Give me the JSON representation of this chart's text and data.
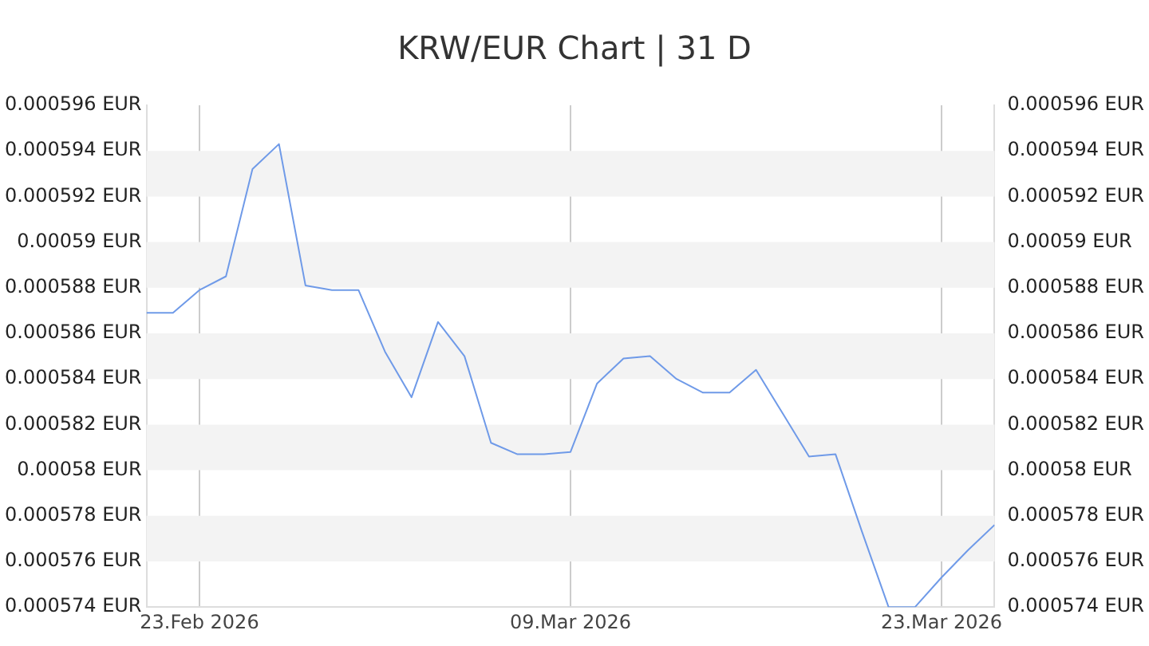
{
  "chart_data": {
    "type": "line",
    "title": "KRW/EUR Chart | 31 D",
    "x": [
      "2026-02-21",
      "2026-02-22",
      "2026-02-23",
      "2026-02-24",
      "2026-02-25",
      "2026-02-26",
      "2026-02-27",
      "2026-02-28",
      "2026-03-01",
      "2026-03-02",
      "2026-03-03",
      "2026-03-04",
      "2026-03-05",
      "2026-03-06",
      "2026-03-07",
      "2026-03-08",
      "2026-03-09",
      "2026-03-10",
      "2026-03-11",
      "2026-03-12",
      "2026-03-13",
      "2026-03-14",
      "2026-03-15",
      "2026-03-16",
      "2026-03-17",
      "2026-03-18",
      "2026-03-19",
      "2026-03-20",
      "2026-03-21",
      "2026-03-22",
      "2026-03-23",
      "2026-03-24",
      "2026-03-25"
    ],
    "series": [
      {
        "color": "#6f9ae8",
        "values": [
          0.0005869,
          0.0005869,
          0.0005879,
          0.0005885,
          0.0005932,
          0.0005943,
          0.0005881,
          0.0005879,
          0.0005879,
          0.0005852,
          0.0005832,
          0.0005865,
          0.000585,
          0.0005812,
          0.0005807,
          0.0005807,
          0.0005808,
          0.0005838,
          0.0005849,
          0.000585,
          0.000584,
          0.0005834,
          0.0005834,
          0.0005844,
          0.0005825,
          0.0005806,
          0.0005807,
          0.0005773,
          0.000574,
          0.000574,
          0.0005753,
          0.0005765,
          0.0005776
        ]
      }
    ],
    "xlim": [
      "2026-02-21",
      "2026-03-25"
    ],
    "xticks": [
      {
        "value": "2026-02-23",
        "label": "23.Feb 2026"
      },
      {
        "value": "2026-03-09",
        "label": "09.Mar 2026"
      },
      {
        "value": "2026-03-23",
        "label": "23.Mar 2026"
      }
    ],
    "ylim": [
      0.000574,
      0.000596
    ],
    "yticks": [
      {
        "value": 0.000574,
        "label": "0.000574 EUR"
      },
      {
        "value": 0.000576,
        "label": "0.000576 EUR"
      },
      {
        "value": 0.000578,
        "label": "0.000578 EUR"
      },
      {
        "value": 0.00058,
        "label": "0.00058 EUR"
      },
      {
        "value": 0.000582,
        "label": "0.000582 EUR"
      },
      {
        "value": 0.000584,
        "label": "0.000584 EUR"
      },
      {
        "value": 0.000586,
        "label": "0.000586 EUR"
      },
      {
        "value": 0.000588,
        "label": "0.000588 EUR"
      },
      {
        "value": 0.00059,
        "label": "0.00059 EUR"
      },
      {
        "value": 0.000592,
        "label": "0.000592 EUR"
      },
      {
        "value": 0.000594,
        "label": "0.000594 EUR"
      },
      {
        "value": 0.000596,
        "label": "0.000596 EUR"
      }
    ],
    "y2lim": [
      0.000574,
      0.000596
    ],
    "y2ticks": [
      {
        "value": 0.000574,
        "label": "0.000574 EUR"
      },
      {
        "value": 0.000576,
        "label": "0.000576 EUR"
      },
      {
        "value": 0.000578,
        "label": "0.000578 EUR"
      },
      {
        "value": 0.00058,
        "label": "0.00058 EUR"
      },
      {
        "value": 0.000582,
        "label": "0.000582 EUR"
      },
      {
        "value": 0.000584,
        "label": "0.000584 EUR"
      },
      {
        "value": 0.000586,
        "label": "0.000586 EUR"
      },
      {
        "value": 0.000588,
        "label": "0.000588 EUR"
      },
      {
        "value": 0.00059,
        "label": "0.00059 EUR"
      },
      {
        "value": 0.000592,
        "label": "0.000592 EUR"
      },
      {
        "value": 0.000594,
        "label": "0.000594 EUR"
      },
      {
        "value": 0.000596,
        "label": "0.000596 EUR"
      }
    ],
    "bands": [
      {
        "axis": "y",
        "from": 0.000592,
        "to": 0.000594,
        "color": "#f3f3f3"
      },
      {
        "axis": "y",
        "from": 0.000588,
        "to": 0.00059,
        "color": "#f3f3f3"
      },
      {
        "axis": "y",
        "from": 0.000584,
        "to": 0.000586,
        "color": "#f3f3f3"
      },
      {
        "axis": "y",
        "from": 0.00058,
        "to": 0.000582,
        "color": "#f3f3f3"
      },
      {
        "axis": "y",
        "from": 0.000576,
        "to": 0.000578,
        "color": "#f3f3f3"
      }
    ],
    "grid": "x",
    "legend": false,
    "marker": "none",
    "line_style": "solid"
  }
}
